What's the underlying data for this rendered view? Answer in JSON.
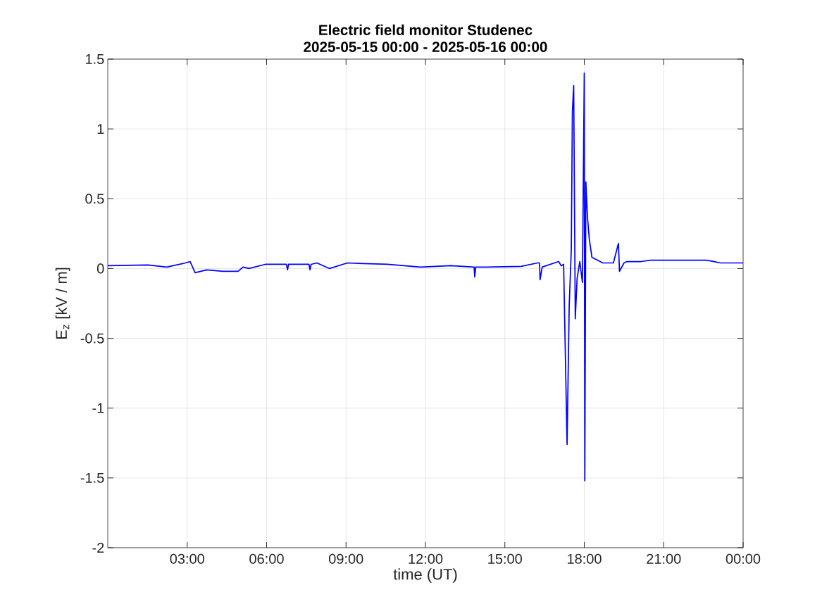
{
  "chart_data": {
    "type": "line",
    "title": "Electric field monitor Studenec",
    "subtitle": "2025-05-15 00:00 - 2025-05-16 00:00",
    "xlabel": "time (UT)",
    "ylabel": "E$_{z}$ [kV / m]",
    "x": [
      0,
      1.52,
      2.23,
      2.93,
      3.11,
      3.3,
      3.73,
      4.36,
      4.92,
      5.11,
      5.33,
      5.95,
      6.75,
      6.79,
      6.83,
      7.6,
      7.64,
      7.68,
      7.9,
      8.38,
      9.05,
      10.56,
      11.81,
      12.96,
      13.84,
      13.86,
      13.9,
      14.29,
      15.62,
      16.23,
      16.31,
      16.33,
      16.41,
      17.03,
      17.13,
      17.22,
      17.35,
      17.43,
      17.51,
      17.55,
      17.6,
      17.66,
      17.73,
      17.83,
      17.93,
      18.0,
      18.02,
      18.06,
      18.12,
      18.19,
      18.29,
      18.7,
      19.1,
      19.29,
      19.33,
      19.5,
      19.61,
      20.14,
      20.5,
      22.62,
      23.15,
      24
    ],
    "series": [
      {
        "color": "#0000ff",
        "values": [
          0.02,
          0.025,
          0.01,
          0.04,
          0.05,
          -0.03,
          -0.01,
          -0.02,
          -0.02,
          0.01,
          0.0,
          0.03,
          0.03,
          -0.01,
          0.03,
          0.03,
          -0.01,
          0.03,
          0.04,
          0.0,
          0.04,
          0.03,
          0.01,
          0.02,
          0.01,
          -0.06,
          0.01,
          0.01,
          0.015,
          0.04,
          0.04,
          -0.08,
          0.01,
          0.05,
          0.02,
          0.03,
          -1.26,
          -0.27,
          0.14,
          1.12,
          1.31,
          -0.36,
          -0.07,
          0.05,
          -0.1,
          1.4,
          -1.52,
          0.62,
          0.37,
          0.21,
          0.08,
          0.04,
          0.04,
          0.18,
          -0.02,
          0.04,
          0.05,
          0.05,
          0.06,
          0.06,
          0.04,
          0.04
        ]
      }
    ],
    "xlim": [
      0,
      24
    ],
    "xticks": [
      {
        "value": 3,
        "label": "03:00"
      },
      {
        "value": 6,
        "label": "06:00"
      },
      {
        "value": 9,
        "label": "09:00"
      },
      {
        "value": 12,
        "label": "12:00"
      },
      {
        "value": 15,
        "label": "15:00"
      },
      {
        "value": 18,
        "label": "18:00"
      },
      {
        "value": 21,
        "label": "21:00"
      },
      {
        "value": 24,
        "label": "00:00"
      }
    ],
    "ylim": [
      -2,
      1.5
    ],
    "yticks": [
      -2,
      -1.5,
      -1,
      -0.5,
      0,
      0.5,
      1,
      1.5
    ],
    "grid": true,
    "marker": "none",
    "line_style": "solid"
  }
}
